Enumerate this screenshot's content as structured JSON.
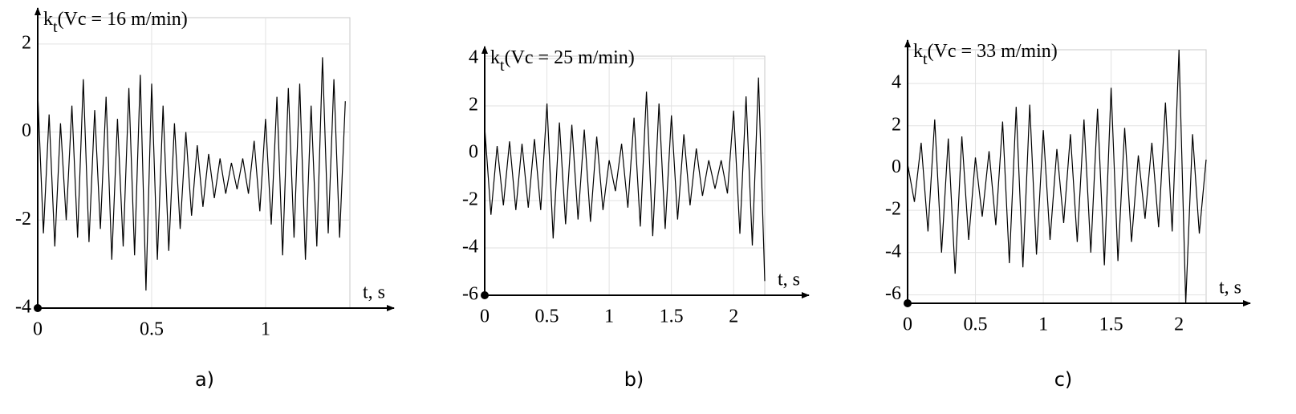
{
  "chart_data": [
    {
      "type": "line",
      "caption": "a)",
      "ylabel": {
        "base": "k",
        "sub": "t",
        "text": "(Vc = 16 m/min)"
      },
      "xlabel": "t, s",
      "x": [
        0,
        0.025,
        0.05,
        0.075,
        0.1,
        0.125,
        0.15,
        0.175,
        0.2,
        0.225,
        0.25,
        0.275,
        0.3,
        0.325,
        0.35,
        0.375,
        0.4,
        0.425,
        0.45,
        0.475,
        0.5,
        0.525,
        0.55,
        0.575,
        0.6,
        0.625,
        0.65,
        0.675,
        0.7,
        0.725,
        0.75,
        0.775,
        0.8,
        0.825,
        0.85,
        0.875,
        0.9,
        0.925,
        0.95,
        0.975,
        1,
        1.025,
        1.05,
        1.075,
        1.1,
        1.125,
        1.15,
        1.175,
        1.2,
        1.225,
        1.25,
        1.275,
        1.3,
        1.325,
        1.35
      ],
      "values": [
        0.9,
        -2.3,
        0.4,
        -2.6,
        0.2,
        -2.0,
        0.6,
        -2.4,
        1.2,
        -2.5,
        0.5,
        -2.2,
        0.8,
        -2.9,
        0.3,
        -2.6,
        1.0,
        -2.8,
        1.3,
        -3.6,
        1.1,
        -2.9,
        0.6,
        -2.7,
        0.2,
        -2.2,
        0.0,
        -1.9,
        -0.3,
        -1.7,
        -0.5,
        -1.5,
        -0.6,
        -1.4,
        -0.7,
        -1.3,
        -0.6,
        -1.4,
        -0.2,
        -1.8,
        0.3,
        -2.1,
        0.8,
        -2.8,
        1.0,
        -2.4,
        1.1,
        -2.9,
        0.6,
        -2.6,
        1.7,
        -2.3,
        1.2,
        -2.4,
        0.7
      ],
      "color": "#000000",
      "xlim": [
        0,
        1.37
      ],
      "ylim": [
        -4,
        2.6
      ],
      "xticks": [
        0,
        0.5,
        1
      ],
      "yticks": [
        -4,
        -2,
        0,
        2
      ],
      "grid": true
    },
    {
      "type": "line",
      "caption": "b)",
      "ylabel": {
        "base": "k",
        "sub": "t",
        "text": "(Vc = 25 m/min)"
      },
      "xlabel": "t, s",
      "x": [
        0,
        0.05,
        0.1,
        0.15,
        0.2,
        0.25,
        0.3,
        0.35,
        0.4,
        0.45,
        0.5,
        0.55,
        0.6,
        0.65,
        0.7,
        0.75,
        0.8,
        0.85,
        0.9,
        0.95,
        1,
        1.05,
        1.1,
        1.15,
        1.2,
        1.25,
        1.3,
        1.35,
        1.4,
        1.45,
        1.5,
        1.55,
        1.6,
        1.65,
        1.7,
        1.75,
        1.8,
        1.85,
        1.9,
        1.95,
        2,
        2.05,
        2.1,
        2.15,
        2.2,
        2.25
      ],
      "values": [
        1.1,
        -2.6,
        0.3,
        -2.2,
        0.5,
        -2.4,
        0.4,
        -2.3,
        0.6,
        -2.4,
        2.1,
        -3.6,
        1.3,
        -3.0,
        1.2,
        -2.8,
        1.0,
        -2.9,
        0.7,
        -2.4,
        -0.3,
        -1.6,
        0.4,
        -2.3,
        1.5,
        -3.1,
        2.6,
        -3.5,
        2.1,
        -3.2,
        1.6,
        -2.8,
        0.8,
        -2.2,
        0.2,
        -1.8,
        -0.3,
        -1.5,
        -0.3,
        -1.7,
        1.8,
        -3.4,
        2.4,
        -3.9,
        3.2,
        -5.4
      ],
      "color": "#000000",
      "xlim": [
        0,
        2.25
      ],
      "ylim": [
        -6,
        4.1
      ],
      "xticks": [
        0,
        0.5,
        1,
        1.5,
        2
      ],
      "yticks": [
        -6,
        -4,
        -2,
        0,
        2,
        4
      ],
      "grid": true
    },
    {
      "type": "line",
      "caption": "c)",
      "ylabel": {
        "base": "k",
        "sub": "t",
        "text": "(Vc = 33 m/min)"
      },
      "xlabel": "t, s",
      "x": [
        0,
        0.05,
        0.1,
        0.15,
        0.2,
        0.25,
        0.3,
        0.35,
        0.4,
        0.45,
        0.5,
        0.55,
        0.6,
        0.65,
        0.7,
        0.75,
        0.8,
        0.85,
        0.9,
        0.95,
        1,
        1.05,
        1.1,
        1.15,
        1.2,
        1.25,
        1.3,
        1.35,
        1.4,
        1.45,
        1.5,
        1.55,
        1.6,
        1.65,
        1.7,
        1.75,
        1.8,
        1.85,
        1.9,
        1.95,
        2,
        2.05,
        2.1,
        2.15,
        2.2
      ],
      "values": [
        0.2,
        -1.6,
        1.2,
        -3.0,
        2.3,
        -4.0,
        1.4,
        -5.0,
        1.5,
        -3.4,
        0.5,
        -2.3,
        0.8,
        -2.7,
        2.2,
        -4.5,
        2.9,
        -4.7,
        3.0,
        -4.1,
        1.8,
        -3.4,
        0.9,
        -2.6,
        1.6,
        -3.5,
        2.3,
        -4.0,
        2.8,
        -4.6,
        3.8,
        -4.4,
        1.9,
        -3.5,
        0.6,
        -2.4,
        1.2,
        -2.8,
        3.1,
        -3.0,
        5.6,
        -6.4,
        1.6,
        -3.1,
        0.4
      ],
      "color": "#000000",
      "xlim": [
        0,
        2.2
      ],
      "ylim": [
        -6.4,
        5.6
      ],
      "xticks": [
        0,
        0.5,
        1,
        1.5,
        2
      ],
      "yticks": [
        -6,
        -4,
        -2,
        0,
        2,
        4
      ],
      "grid": true
    }
  ]
}
